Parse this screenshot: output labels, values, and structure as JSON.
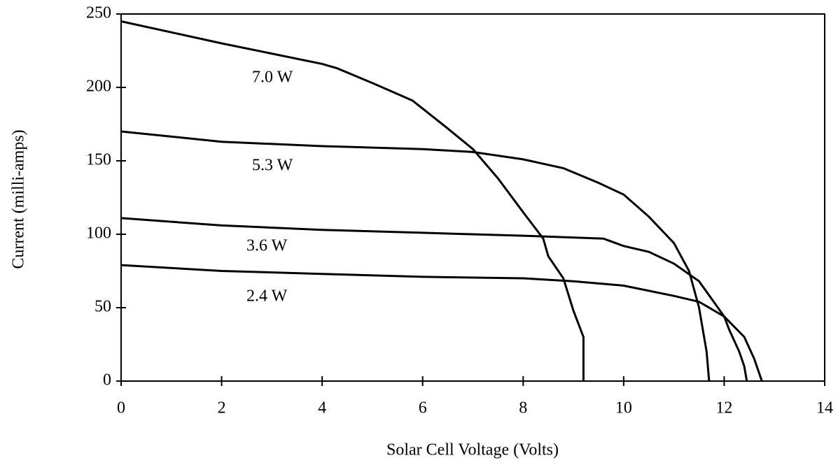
{
  "chart_data": {
    "type": "line",
    "xlabel": "Solar Cell Voltage (Volts)",
    "ylabel": "Current (milli-amps)",
    "xlim": [
      0,
      14
    ],
    "xticks": [
      0,
      2,
      4,
      6,
      8,
      10,
      12,
      14
    ],
    "ylim": [
      0,
      250
    ],
    "yticks": [
      0,
      50,
      100,
      150,
      200,
      250
    ],
    "series": [
      {
        "name": "7.0 W",
        "color": "#000000",
        "x": [
          0,
          2,
          4,
          4.3,
          5,
          5.8,
          6.5,
          7,
          7.5,
          8,
          8.4,
          8.5,
          8.8,
          9.0,
          9.2,
          9.2
        ],
        "values": [
          245,
          230,
          216,
          213,
          203,
          191,
          172,
          158,
          138,
          115,
          97,
          85,
          70,
          48,
          30,
          0
        ]
      },
      {
        "name": "5.3 W",
        "color": "#000000",
        "x": [
          0,
          2,
          4,
          6,
          7,
          8,
          8.8,
          9.5,
          10,
          10.5,
          11,
          11.3,
          11.5,
          11.65,
          11.7
        ],
        "values": [
          170,
          163,
          160,
          158,
          156,
          151,
          145,
          135,
          127,
          112,
          94,
          75,
          50,
          20,
          0
        ]
      },
      {
        "name": "3.6 W",
        "color": "#000000",
        "x": [
          0,
          2,
          4,
          6,
          8,
          9.6,
          10,
          10.5,
          11,
          11.5,
          12,
          12.1,
          12.3,
          12.4,
          12.45
        ],
        "values": [
          111,
          106,
          103,
          101,
          99,
          97,
          92,
          88,
          80,
          68,
          44,
          35,
          20,
          10,
          0
        ]
      },
      {
        "name": "2.4 W",
        "color": "#000000",
        "x": [
          0,
          2,
          4,
          6,
          8,
          9,
          10,
          11,
          11.5,
          12,
          12.4,
          12.6,
          12.75
        ],
        "values": [
          79,
          75,
          73,
          71,
          70,
          68,
          65,
          58,
          54,
          44,
          30,
          15,
          0
        ]
      }
    ]
  }
}
